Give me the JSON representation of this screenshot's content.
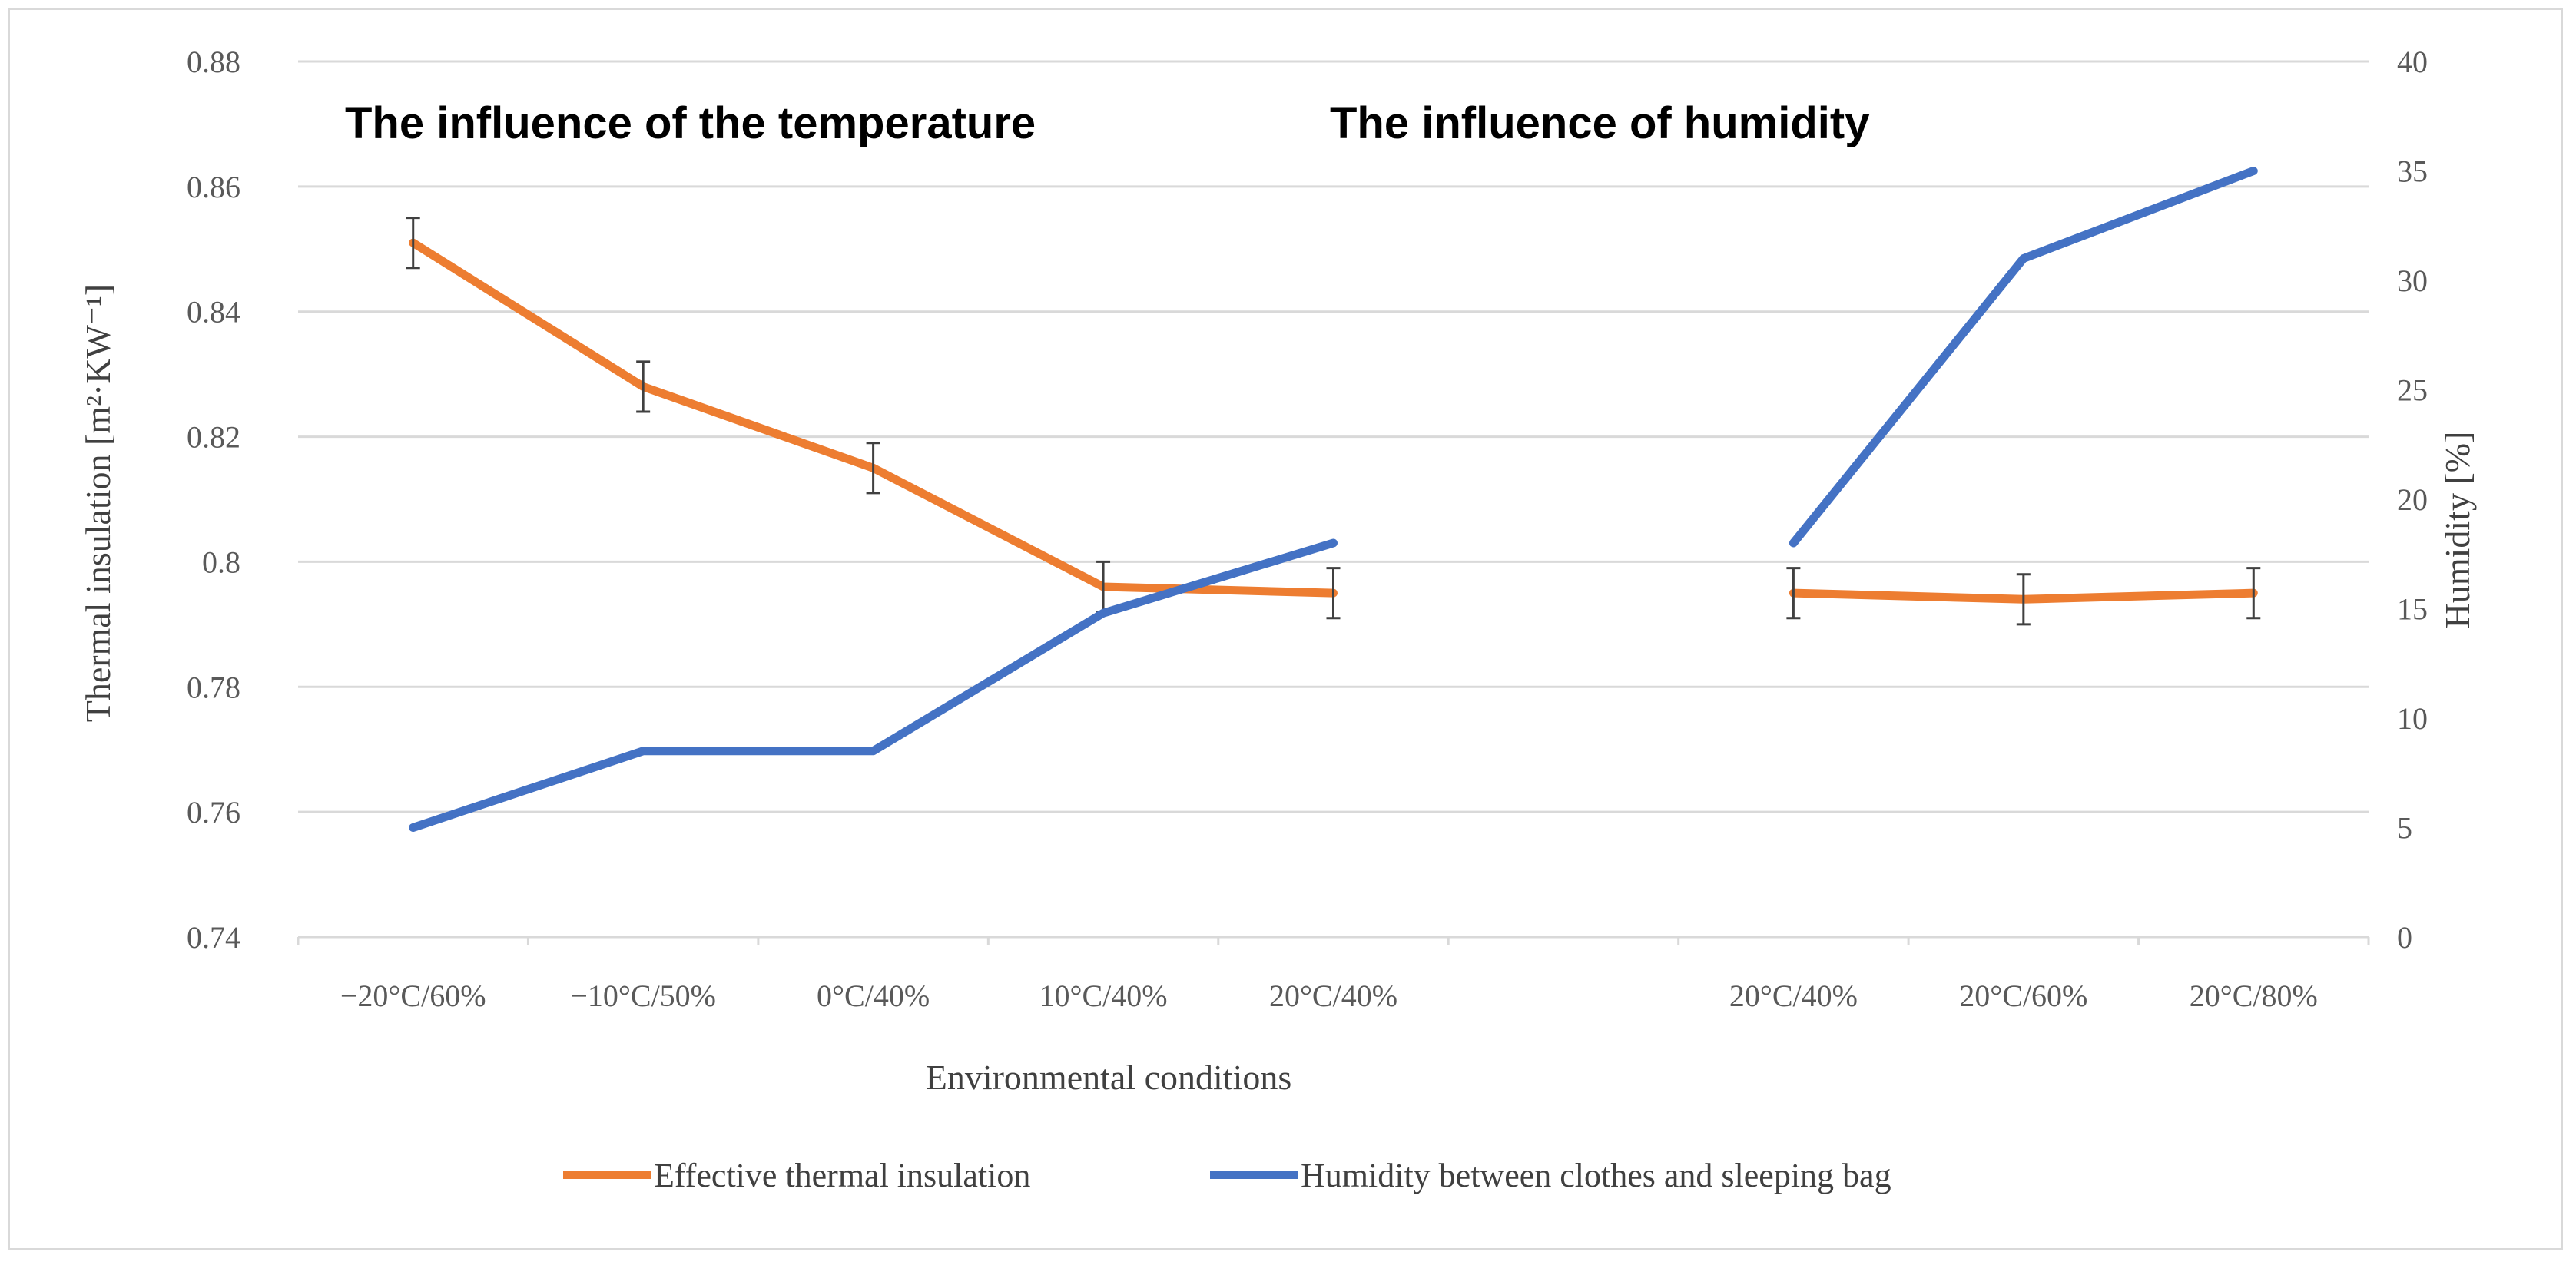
{
  "chart_data": {
    "type": "line",
    "title": "",
    "annotations": [
      "The influence of the temperature",
      "The influence of humidity"
    ],
    "xlabel": "Environmental conditions",
    "ylabel": "Thermal insulation [m²·KW⁻¹]",
    "y2label": "Humidity [%]",
    "categories": [
      "−20°C/60%",
      "−10°C/50%",
      "0°C/40%",
      "10°C/40%",
      "20°C/40%",
      "",
      "20°C/40%",
      "20°C/60%",
      "20°C/80%"
    ],
    "ylim": [
      0.74,
      0.88
    ],
    "yticks": [
      "0.74",
      "0.76",
      "0.78",
      "0.8",
      "0.82",
      "0.84",
      "0.86",
      "0.88"
    ],
    "y2lim": [
      0,
      40
    ],
    "y2ticks": [
      "0",
      "5",
      "10",
      "15",
      "20",
      "25",
      "30",
      "35",
      "40"
    ],
    "grid": true,
    "legend_position": "bottom",
    "series": [
      {
        "name": "Effective thermal insulation",
        "axis": "left",
        "color": "#ed7d31",
        "values": [
          0.851,
          0.828,
          0.815,
          0.796,
          0.795,
          null,
          0.795,
          0.794,
          0.795
        ],
        "errors": [
          0.004,
          0.004,
          0.004,
          0.004,
          0.004,
          null,
          0.004,
          0.004,
          0.004
        ]
      },
      {
        "name": "Humidity between clothes and sleeping bag",
        "axis": "right",
        "color": "#4472c4",
        "values": [
          5,
          8.5,
          8.5,
          14.8,
          18,
          null,
          18,
          31,
          35
        ]
      }
    ]
  }
}
